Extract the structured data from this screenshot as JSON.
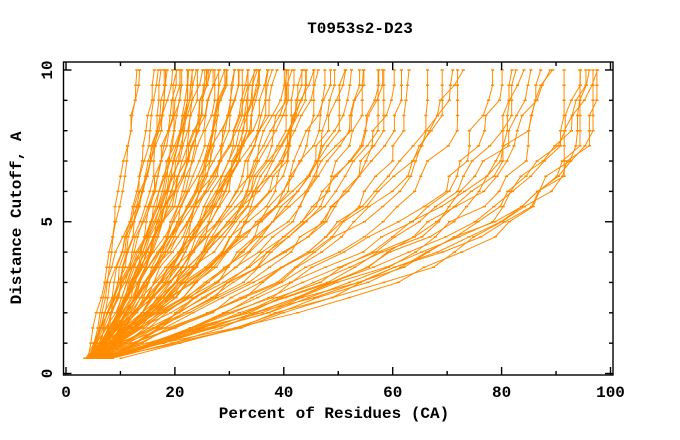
{
  "window": {
    "title": "T0953s2-D23"
  },
  "colors": {
    "curve_orange": "#FF8C00",
    "axis_black": "#000000",
    "background": "#FFFFFF"
  },
  "chart_data": {
    "type": "line",
    "title": "T0953s2-D23",
    "xlabel": "Percent of Residues (CA)",
    "ylabel": "Distance Cutoff, A",
    "xlim": [
      0,
      100
    ],
    "ylim": [
      0,
      10
    ],
    "grid": false,
    "legend": "none",
    "series_color": "#FF8C00",
    "x_axis": {
      "major_ticks": [
        0,
        20,
        40,
        60,
        80,
        100
      ],
      "major_tick_labels": [
        "0",
        "20",
        "40",
        "60",
        "80",
        "100"
      ],
      "minor_ticks": [
        10,
        30,
        50,
        70,
        90
      ]
    },
    "y_axis": {
      "major_ticks": [
        0,
        5,
        10
      ],
      "major_tick_labels": [
        "0",
        "5",
        "10"
      ],
      "minor_ticks": [
        1,
        2,
        3,
        4,
        6,
        7,
        8,
        9
      ],
      "label_rotation_deg": -90
    },
    "cutoffs": {
      "min": 0.5,
      "max": 10.0,
      "step": 0.5,
      "count": 20
    },
    "curve_model": "percent(c)=start+(end-start)*(1-(1-t)^shape)+jitter(seed), t=(c-0.5)/9.5; one curve per predicted model, points marked at each 0.5 A cutoff",
    "curves_format": [
      "start_percent_at_0.5A",
      "end_percent_at_10A",
      "shape",
      "seed"
    ],
    "curves": [
      [
        4,
        12.5,
        1.3,
        1
      ],
      [
        4.5,
        13.2,
        1.35,
        2
      ],
      [
        5,
        16.8,
        1.3,
        3
      ],
      [
        5.5,
        17.2,
        1.4,
        4
      ],
      [
        4,
        17.8,
        1.3,
        5
      ],
      [
        6,
        18.2,
        1.45,
        6
      ],
      [
        4.5,
        18.6,
        1.35,
        7
      ],
      [
        5,
        16.4,
        1.4,
        8
      ],
      [
        4,
        19,
        1.4,
        11
      ],
      [
        4.5,
        20,
        1.45,
        12
      ],
      [
        5,
        20.5,
        1.35,
        13
      ],
      [
        5.5,
        21,
        1.5,
        14
      ],
      [
        6,
        21.5,
        1.4,
        15
      ],
      [
        4,
        22,
        1.55,
        16
      ],
      [
        4.5,
        22.5,
        1.45,
        17
      ],
      [
        5,
        23,
        1.5,
        18
      ],
      [
        5.5,
        23.5,
        1.6,
        19
      ],
      [
        6,
        24,
        1.45,
        20
      ],
      [
        6.5,
        24.5,
        1.55,
        21
      ],
      [
        4,
        25,
        1.5,
        22
      ],
      [
        4.5,
        25.5,
        1.6,
        23
      ],
      [
        5,
        26,
        1.55,
        24
      ],
      [
        5.5,
        26.5,
        1.65,
        25
      ],
      [
        6,
        27,
        1.5,
        26
      ],
      [
        6.5,
        27.5,
        1.6,
        27
      ],
      [
        7,
        28,
        1.55,
        28
      ],
      [
        4,
        28.5,
        1.65,
        29
      ],
      [
        4.5,
        29,
        1.6,
        30
      ],
      [
        5,
        29.5,
        1.7,
        31
      ],
      [
        5.5,
        30,
        1.55,
        32
      ],
      [
        6,
        30.5,
        1.6,
        33
      ],
      [
        6.5,
        31,
        1.7,
        34
      ],
      [
        7,
        31.5,
        1.65,
        35
      ],
      [
        4,
        32,
        1.75,
        36
      ],
      [
        4.5,
        32.5,
        1.6,
        37
      ],
      [
        5,
        33,
        1.8,
        38
      ],
      [
        5.5,
        33.5,
        1.7,
        39
      ],
      [
        6,
        34,
        1.75,
        40
      ],
      [
        6.5,
        34.5,
        1.65,
        41
      ],
      [
        7,
        35,
        1.85,
        42
      ],
      [
        4,
        35.5,
        1.7,
        43
      ],
      [
        4.5,
        36,
        1.8,
        44
      ],
      [
        5,
        36.5,
        1.75,
        45
      ],
      [
        5.5,
        37,
        1.85,
        46
      ],
      [
        6,
        38,
        1.7,
        47
      ],
      [
        6.5,
        39,
        1.9,
        48
      ],
      [
        7,
        39.5,
        1.8,
        49
      ],
      [
        4,
        40,
        1.8,
        50
      ],
      [
        4.5,
        41,
        1.9,
        51
      ],
      [
        5,
        41.5,
        1.75,
        52
      ],
      [
        5.5,
        42,
        1.85,
        53
      ],
      [
        6,
        43,
        1.95,
        54
      ],
      [
        6.5,
        43.5,
        1.8,
        55
      ],
      [
        7,
        44,
        1.9,
        56
      ],
      [
        4,
        45,
        2.0,
        57
      ],
      [
        4.5,
        46,
        1.85,
        58
      ],
      [
        5,
        47,
        1.95,
        59
      ],
      [
        5.5,
        48,
        1.9,
        60
      ],
      [
        6,
        49,
        2.0,
        61
      ],
      [
        6.5,
        50,
        1.9,
        62
      ],
      [
        7,
        51,
        2.0,
        63
      ],
      [
        4,
        52,
        1.95,
        64
      ],
      [
        4.5,
        53,
        2.05,
        65
      ],
      [
        5,
        54,
        1.9,
        66
      ],
      [
        5.5,
        55,
        2.1,
        67
      ],
      [
        6,
        56,
        2.0,
        68
      ],
      [
        6.5,
        57,
        2.1,
        69
      ],
      [
        7,
        58,
        1.95,
        70
      ],
      [
        5,
        60,
        2.15,
        71
      ],
      [
        5.5,
        61,
        2.05,
        72
      ],
      [
        6,
        64,
        2.1,
        73
      ],
      [
        6.5,
        66,
        2.2,
        74
      ],
      [
        7,
        68,
        2.15,
        75
      ],
      [
        5,
        70,
        2.25,
        76
      ],
      [
        5.5,
        72,
        2.2,
        77
      ],
      [
        6,
        74,
        2.3,
        78
      ],
      [
        6.5,
        77,
        2.25,
        79
      ],
      [
        7,
        79,
        2.35,
        80
      ],
      [
        7.5,
        80,
        2.3,
        81
      ],
      [
        5,
        82,
        2.4,
        82
      ],
      [
        5.5,
        83,
        2.35,
        83
      ],
      [
        6,
        85,
        2.45,
        84
      ],
      [
        6.5,
        86,
        2.4,
        85
      ],
      [
        7,
        88,
        2.5,
        86
      ],
      [
        7.5,
        90,
        2.45,
        87
      ],
      [
        8,
        92,
        2.5,
        88
      ],
      [
        5.5,
        93,
        2.55,
        89
      ],
      [
        6,
        94,
        2.5,
        90
      ],
      [
        6.5,
        95,
        2.6,
        91
      ],
      [
        7,
        96,
        2.55,
        92
      ],
      [
        7.5,
        97,
        2.6,
        93
      ],
      [
        8,
        98,
        2.65,
        94
      ],
      [
        5,
        21.8,
        1.5,
        95
      ],
      [
        6,
        23.2,
        1.4,
        96
      ],
      [
        4.5,
        24.8,
        1.6,
        97
      ],
      [
        5.5,
        26.2,
        1.5,
        98
      ],
      [
        6.5,
        28.8,
        1.7,
        99
      ],
      [
        5,
        31.2,
        1.8,
        100
      ],
      [
        6,
        33.8,
        1.7,
        101
      ],
      [
        4.5,
        36.8,
        1.9,
        102
      ],
      [
        5.5,
        42.5,
        2.0,
        103
      ],
      [
        6,
        45.5,
        2.1,
        104
      ],
      [
        5,
        58.5,
        2.2,
        105
      ],
      [
        7,
        90.5,
        2.4,
        106
      ]
    ]
  }
}
